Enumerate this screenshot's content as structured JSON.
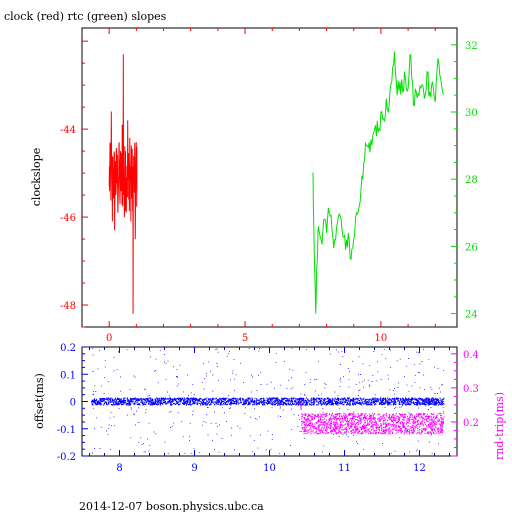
{
  "title": "clock (red) rtc (green) slopes",
  "footer": "2014-12-07 boson.physics.ubc.ca",
  "colors": {
    "clock": "#ff0000",
    "rtc": "#00e000",
    "offset": "#0000ff",
    "rndtrip": "#ff00ff",
    "axis": "#000000"
  },
  "chart_data": [
    {
      "type": "line",
      "title": "clock (red) rtc (green) slopes",
      "xlabel": "",
      "ylabel": "clockslope",
      "ylabel_right": "",
      "xlim": [
        -1,
        12.8
      ],
      "ylim": [
        -48.5,
        -41.7
      ],
      "ylim_right": [
        23.6,
        32.5
      ],
      "x_ticks": [
        "0",
        "5",
        "10"
      ],
      "y_ticks": [
        "-44",
        "-46",
        "-48"
      ],
      "y_ticks_right": [
        "24",
        "26",
        "28",
        "30",
        "32"
      ],
      "series": [
        {
          "name": "clock",
          "axis": "left",
          "color": "#ff0000",
          "points": [
            [
              0.0,
              -45.3
            ],
            [
              0.04,
              -44.4
            ],
            [
              0.08,
              -43.6
            ],
            [
              0.12,
              -46.1
            ],
            [
              0.16,
              -44.9
            ],
            [
              0.2,
              -46.3
            ],
            [
              0.24,
              -45.5
            ],
            [
              0.28,
              -44.6
            ],
            [
              0.32,
              -45.9
            ],
            [
              0.36,
              -44.3
            ],
            [
              0.4,
              -45.7
            ],
            [
              0.44,
              -44.6
            ],
            [
              0.48,
              -43.9
            ],
            [
              0.52,
              -42.3
            ],
            [
              0.56,
              -46.0
            ],
            [
              0.6,
              -44.5
            ],
            [
              0.64,
              -45.1
            ],
            [
              0.68,
              -43.8
            ],
            [
              0.72,
              -45.6
            ],
            [
              0.76,
              -44.2
            ],
            [
              0.8,
              -46.1
            ],
            [
              0.84,
              -44.8
            ],
            [
              0.88,
              -48.2
            ],
            [
              0.92,
              -44.9
            ],
            [
              0.96,
              -46.5
            ],
            [
              1.0,
              -44.3
            ],
            [
              1.02,
              -45.4
            ]
          ]
        },
        {
          "name": "rtc",
          "axis": "right",
          "color": "#00e000",
          "points": [
            [
              7.5,
              28.2
            ],
            [
              7.55,
              25.8
            ],
            [
              7.6,
              24.0
            ],
            [
              7.65,
              25.5
            ],
            [
              7.7,
              26.6
            ],
            [
              7.8,
              26.2
            ],
            [
              7.9,
              26.8
            ],
            [
              8.0,
              26.4
            ],
            [
              8.1,
              27.0
            ],
            [
              8.2,
              26.5
            ],
            [
              8.3,
              26.2
            ],
            [
              8.4,
              26.7
            ],
            [
              8.5,
              26.9
            ],
            [
              8.6,
              26.3
            ],
            [
              8.7,
              25.9
            ],
            [
              8.8,
              26.4
            ],
            [
              8.9,
              25.6
            ],
            [
              9.0,
              26.2
            ],
            [
              9.1,
              27.0
            ],
            [
              9.2,
              27.2
            ],
            [
              9.3,
              28.1
            ],
            [
              9.4,
              28.6
            ],
            [
              9.5,
              29.0
            ],
            [
              9.6,
              28.8
            ],
            [
              9.7,
              29.3
            ],
            [
              9.8,
              29.6
            ],
            [
              9.9,
              29.4
            ],
            [
              10.0,
              30.0
            ],
            [
              10.1,
              29.8
            ],
            [
              10.2,
              30.4
            ],
            [
              10.3,
              30.2
            ],
            [
              10.4,
              30.9
            ],
            [
              10.5,
              31.8
            ],
            [
              10.6,
              30.5
            ],
            [
              10.7,
              30.9
            ],
            [
              10.8,
              30.6
            ],
            [
              10.9,
              31.0
            ],
            [
              11.0,
              30.7
            ],
            [
              11.1,
              31.7
            ],
            [
              11.2,
              30.2
            ],
            [
              11.3,
              30.6
            ],
            [
              11.4,
              30.5
            ],
            [
              11.5,
              30.8
            ],
            [
              11.6,
              30.4
            ],
            [
              11.7,
              31.2
            ],
            [
              11.8,
              30.6
            ],
            [
              11.9,
              30.9
            ],
            [
              12.0,
              30.3
            ],
            [
              12.1,
              31.6
            ],
            [
              12.2,
              31.0
            ],
            [
              12.3,
              30.5
            ]
          ]
        }
      ]
    },
    {
      "type": "scatter",
      "xlabel": "",
      "ylabel": "offset(ms)",
      "ylabel_right": "rnd-trip(ms)",
      "xlim": [
        7.5,
        12.5
      ],
      "ylim": [
        -0.2,
        0.2
      ],
      "ylim_right": [
        0.1,
        0.42
      ],
      "x_ticks": [
        "8",
        "9",
        "10",
        "11",
        "12"
      ],
      "y_ticks": [
        "0.2",
        "0.1",
        "0",
        "-0.1",
        "-0.2"
      ],
      "y_ticks_right": [
        "0.4",
        "0.3",
        "0.2"
      ],
      "series": [
        {
          "name": "offset",
          "axis": "left",
          "color": "#0000ff",
          "x_range": [
            7.62,
            12.32
          ],
          "center": 0.0,
          "band_halfwidth": 0.013,
          "scatter_range": [
            -0.18,
            0.2
          ]
        },
        {
          "name": "rnd-trip",
          "axis": "right",
          "color": "#ff00ff",
          "x_range": [
            10.42,
            12.32
          ],
          "center": 0.195,
          "band_halfwidth": 0.03
        }
      ]
    }
  ]
}
